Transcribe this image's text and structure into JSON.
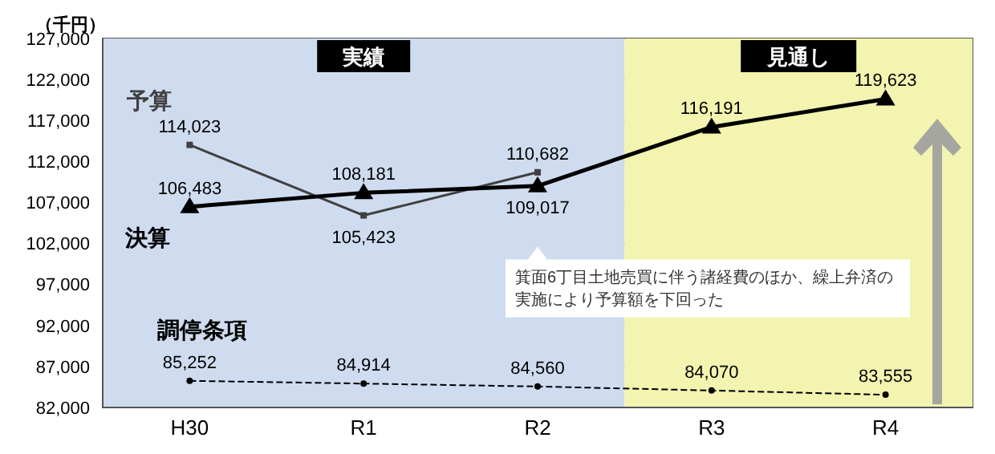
{
  "chart_data": {
    "type": "line",
    "ylabel": "（千円）",
    "categories": [
      "H30",
      "R1",
      "R2",
      "R3",
      "R4"
    ],
    "ylim": [
      82000,
      127000
    ],
    "yticks": [
      {
        "value": 82000,
        "label": "82,000"
      },
      {
        "value": 87000,
        "label": "87,000"
      },
      {
        "value": 92000,
        "label": "92,000"
      },
      {
        "value": 97000,
        "label": "97,000"
      },
      {
        "value": 102000,
        "label": "102,000"
      },
      {
        "value": 107000,
        "label": "107,000"
      },
      {
        "value": 112000,
        "label": "112,000"
      },
      {
        "value": 117000,
        "label": "117,000"
      },
      {
        "value": 122000,
        "label": "122,000"
      },
      {
        "value": 127000,
        "label": "127,000"
      }
    ],
    "grid": "y",
    "data_labels": true,
    "series": [
      {
        "name": "予算",
        "color": "#404040",
        "values": [
          114023,
          105423,
          110682,
          null,
          null
        ],
        "value_labels": [
          "114,023",
          "105,423",
          "110,682",
          null,
          null
        ],
        "marker": "square",
        "line_style": "solid"
      },
      {
        "name": "決算",
        "color": "#000000",
        "values": [
          106483,
          108181,
          109017,
          116191,
          119623
        ],
        "value_labels": [
          "106,483",
          "108,181",
          "109,017",
          "116,191",
          "119,623"
        ],
        "marker": "triangle",
        "line_style": "solid"
      },
      {
        "name": "調停条項",
        "color": "#000000",
        "values": [
          85252,
          84914,
          84560,
          84070,
          83555
        ],
        "value_labels": [
          "85,252",
          "84,914",
          "84,560",
          "84,070",
          "83,555"
        ],
        "marker": "circle",
        "line_style": "dashed"
      }
    ],
    "bands": [
      {
        "axis": "x",
        "from": "H30",
        "to": "R2",
        "label": "実績",
        "color": "#cfdcf0"
      },
      {
        "axis": "x",
        "from": "R3",
        "to": "R4",
        "label": "見通し",
        "color": "#f2f4b0"
      }
    ],
    "annotations": [
      "箕面6丁目土地売買に伴う諸経費のほか、繰上弁済の実施により予算額を下回った"
    ]
  }
}
